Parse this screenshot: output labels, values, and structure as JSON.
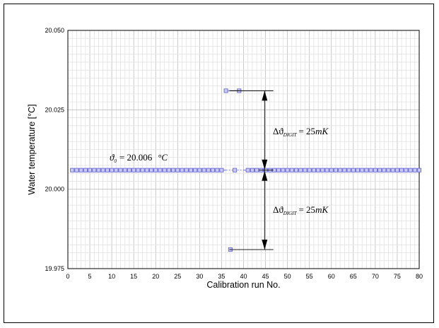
{
  "chart_data": {
    "type": "scatter",
    "xlabel": "Calibration run No.",
    "ylabel": "Water temperature [°C]",
    "xlim": [
      0,
      80
    ],
    "ylim": [
      19.975,
      20.05
    ],
    "xticks": [
      0,
      5,
      10,
      15,
      20,
      25,
      30,
      35,
      40,
      45,
      50,
      55,
      60,
      65,
      70,
      75,
      80
    ],
    "yticks": [
      "19.975",
      "20.000",
      "20.025",
      "20.050"
    ],
    "grid": true,
    "baseline_value": 20.006,
    "baseline_runs": [
      1,
      80
    ],
    "baseline_gap_runs": [
      36,
      40
    ],
    "outliers": [
      {
        "x": 36,
        "y": 20.031
      },
      {
        "x": 39,
        "y": 20.031
      },
      {
        "x": 38,
        "y": 20.006
      },
      {
        "x": 37,
        "y": 19.981
      }
    ],
    "upper_limit": 20.031,
    "lower_limit": 19.981,
    "annotations": {
      "theta_symbol": "ϑ",
      "theta_sub": "0",
      "theta_eq": "= 20.006",
      "theta_unit": "°C",
      "delta_symbol": "Δϑ",
      "delta_sub": "DIGIT",
      "delta_eq": "= 25",
      "delta_unit": "mK"
    }
  }
}
